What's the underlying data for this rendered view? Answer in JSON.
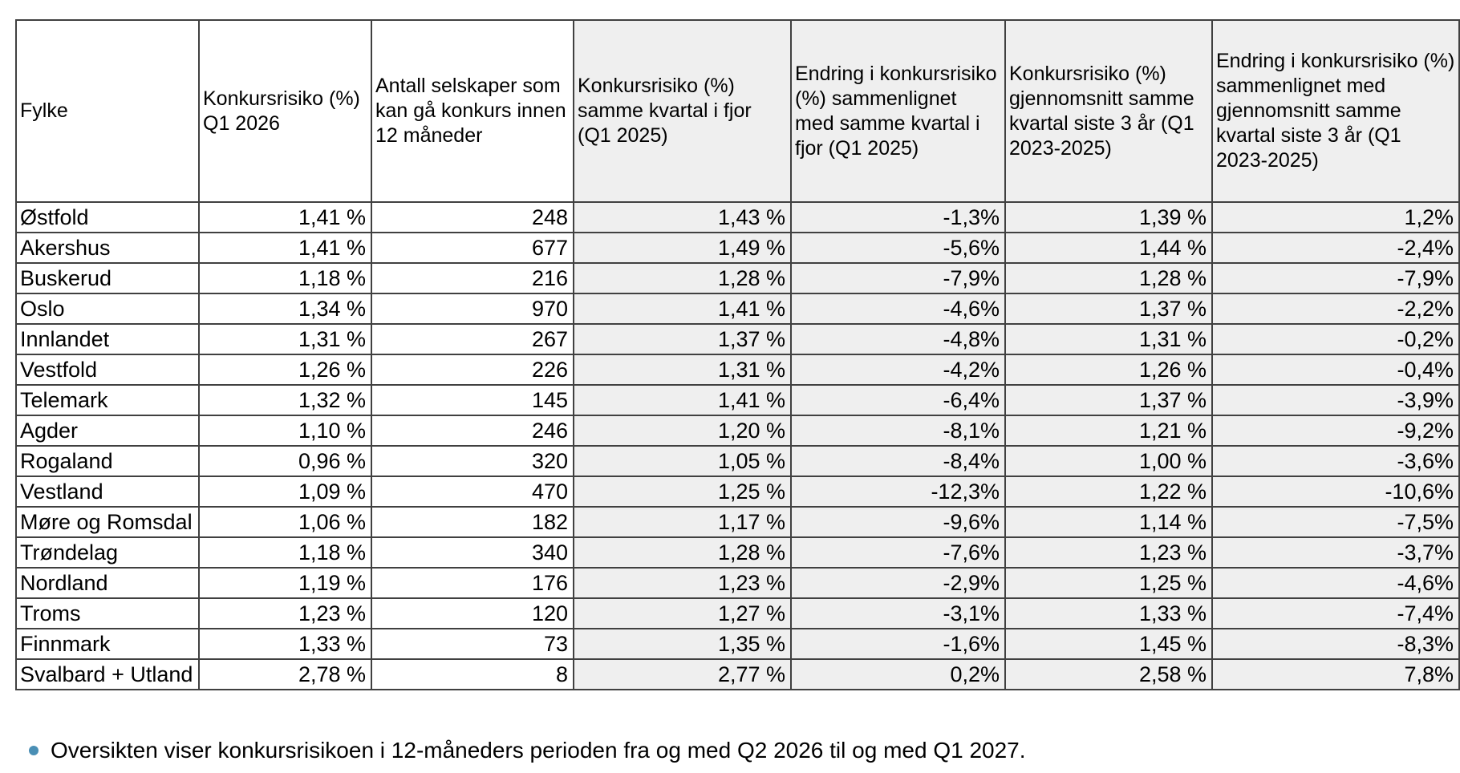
{
  "colors": {
    "shaded_column_bg": "#efefef",
    "table_border": "#404040",
    "bullet": "#4a8fb5",
    "text": "#000000"
  },
  "table": {
    "columns": [
      "Fylke",
      "Konkursrisiko (%) Q1 2026",
      "Antall selskaper som kan gå konkurs innen 12 måneder",
      "Konkursrisiko (%) samme kvartal i fjor (Q1 2025)",
      "Endring i konkursrisiko (%) sammenlignet med samme kvartal i fjor (Q1 2025)",
      "Konkursrisiko (%) gjennomsnitt samme kvartal siste 3 år (Q1 2023-2025)",
      "Endring i konkursrisiko (%) sammenlignet med gjennomsnitt samme kvartal siste 3 år (Q1 2023-2025)"
    ],
    "rows": [
      [
        "Østfold",
        "1,41 %",
        "248",
        "1,43 %",
        "-1,3%",
        "1,39 %",
        "1,2%"
      ],
      [
        "Akershus",
        "1,41 %",
        "677",
        "1,49 %",
        "-5,6%",
        "1,44 %",
        "-2,4%"
      ],
      [
        "Buskerud",
        "1,18 %",
        "216",
        "1,28 %",
        "-7,9%",
        "1,28 %",
        "-7,9%"
      ],
      [
        "Oslo",
        "1,34 %",
        "970",
        "1,41 %",
        "-4,6%",
        "1,37 %",
        "-2,2%"
      ],
      [
        "Innlandet",
        "1,31 %",
        "267",
        "1,37 %",
        "-4,8%",
        "1,31 %",
        "-0,2%"
      ],
      [
        "Vestfold",
        "1,26 %",
        "226",
        "1,31 %",
        "-4,2%",
        "1,26 %",
        "-0,4%"
      ],
      [
        "Telemark",
        "1,32 %",
        "145",
        "1,41 %",
        "-6,4%",
        "1,37 %",
        "-3,9%"
      ],
      [
        "Agder",
        "1,10 %",
        "246",
        "1,20 %",
        "-8,1%",
        "1,21 %",
        "-9,2%"
      ],
      [
        "Rogaland",
        "0,96 %",
        "320",
        "1,05 %",
        "-8,4%",
        "1,00 %",
        "-3,6%"
      ],
      [
        "Vestland",
        "1,09 %",
        "470",
        "1,25 %",
        "-12,3%",
        "1,22 %",
        "-10,6%"
      ],
      [
        "Møre og Romsdal",
        "1,06 %",
        "182",
        "1,17 %",
        "-9,6%",
        "1,14 %",
        "-7,5%"
      ],
      [
        "Trøndelag",
        "1,18 %",
        "340",
        "1,28 %",
        "-7,6%",
        "1,23 %",
        "-3,7%"
      ],
      [
        "Nordland",
        "1,19 %",
        "176",
        "1,23 %",
        "-2,9%",
        "1,25 %",
        "-4,6%"
      ],
      [
        "Troms",
        "1,23 %",
        "120",
        "1,27 %",
        "-3,1%",
        "1,33 %",
        "-7,4%"
      ],
      [
        "Finnmark",
        "1,33 %",
        "73",
        "1,35 %",
        "-1,6%",
        "1,45 %",
        "-8,3%"
      ],
      [
        "Svalbard + Utland",
        "2,78 %",
        "8",
        "2,77 %",
        "0,2%",
        "2,58 %",
        "7,8%"
      ]
    ]
  },
  "note": {
    "text": "Oversikten viser konkursrisikoen i 12-måneders perioden fra og med Q2 2026 til og med Q1 2027."
  }
}
